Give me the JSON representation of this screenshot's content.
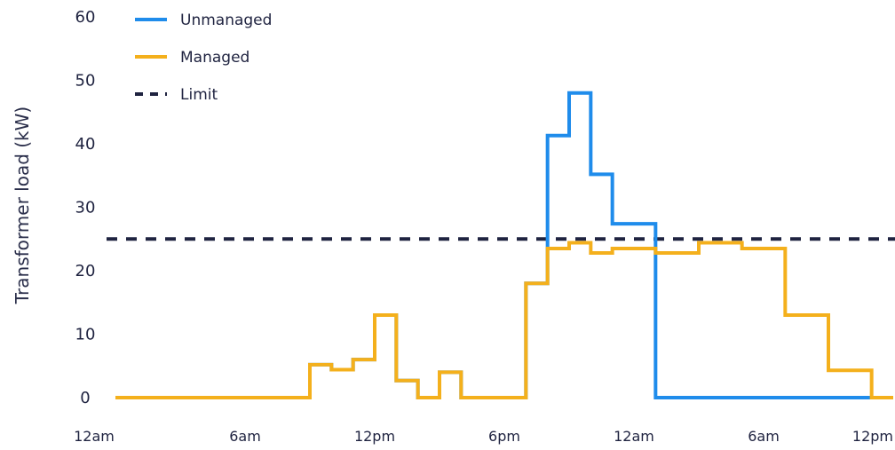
{
  "chart_data": {
    "type": "line",
    "step": true,
    "ylabel": "Transformer load (kW)",
    "xlabel": "",
    "ylim": [
      0,
      60
    ],
    "yticks": [
      0,
      10,
      20,
      30,
      40,
      50,
      60
    ],
    "xlim": [
      0,
      36
    ],
    "xticks": [
      {
        "value": 0,
        "label": "12am"
      },
      {
        "value": 6,
        "label": "6am"
      },
      {
        "value": 12,
        "label": "12pm"
      },
      {
        "value": 18,
        "label": "6pm"
      },
      {
        "value": 24,
        "label": "12am"
      },
      {
        "value": 30,
        "label": "6am"
      },
      {
        "value": 36,
        "label": "12pm"
      }
    ],
    "legend": {
      "placement": "top-left",
      "entries": [
        {
          "key": "unmanaged",
          "label": "Unmanaged"
        },
        {
          "key": "managed",
          "label": "Managed"
        },
        {
          "key": "limit",
          "label": "Limit"
        }
      ]
    },
    "series": [
      {
        "key": "unmanaged",
        "name": "Unmanaged",
        "color": "#1f8ceb",
        "steps": [
          [
            0,
            0
          ],
          [
            9,
            5.2
          ],
          [
            10,
            4.4
          ],
          [
            11,
            6
          ],
          [
            12,
            13
          ],
          [
            13,
            2.7
          ],
          [
            14,
            0
          ],
          [
            15,
            4
          ],
          [
            16,
            0
          ],
          [
            19,
            18
          ],
          [
            20,
            41.3
          ],
          [
            21,
            48
          ],
          [
            22,
            35.2
          ],
          [
            23,
            27.4
          ],
          [
            25,
            0
          ],
          [
            36,
            0
          ]
        ]
      },
      {
        "key": "managed",
        "name": "Managed",
        "color": "#f4b01c",
        "steps": [
          [
            0,
            0
          ],
          [
            9,
            5.2
          ],
          [
            10,
            4.4
          ],
          [
            11,
            6
          ],
          [
            12,
            13
          ],
          [
            13,
            2.7
          ],
          [
            14,
            0
          ],
          [
            15,
            4
          ],
          [
            16,
            0
          ],
          [
            19,
            18
          ],
          [
            20,
            23.5
          ],
          [
            21,
            24.4
          ],
          [
            22,
            22.8
          ],
          [
            23,
            23.5
          ],
          [
            25,
            22.8
          ],
          [
            27,
            24.4
          ],
          [
            29,
            23.5
          ],
          [
            31,
            13
          ],
          [
            33,
            4.3
          ],
          [
            35,
            0
          ],
          [
            36,
            0
          ]
        ]
      }
    ],
    "limit": {
      "key": "limit",
      "name": "Limit",
      "value": 25,
      "color": "#1f2340",
      "style": "dashed"
    }
  }
}
